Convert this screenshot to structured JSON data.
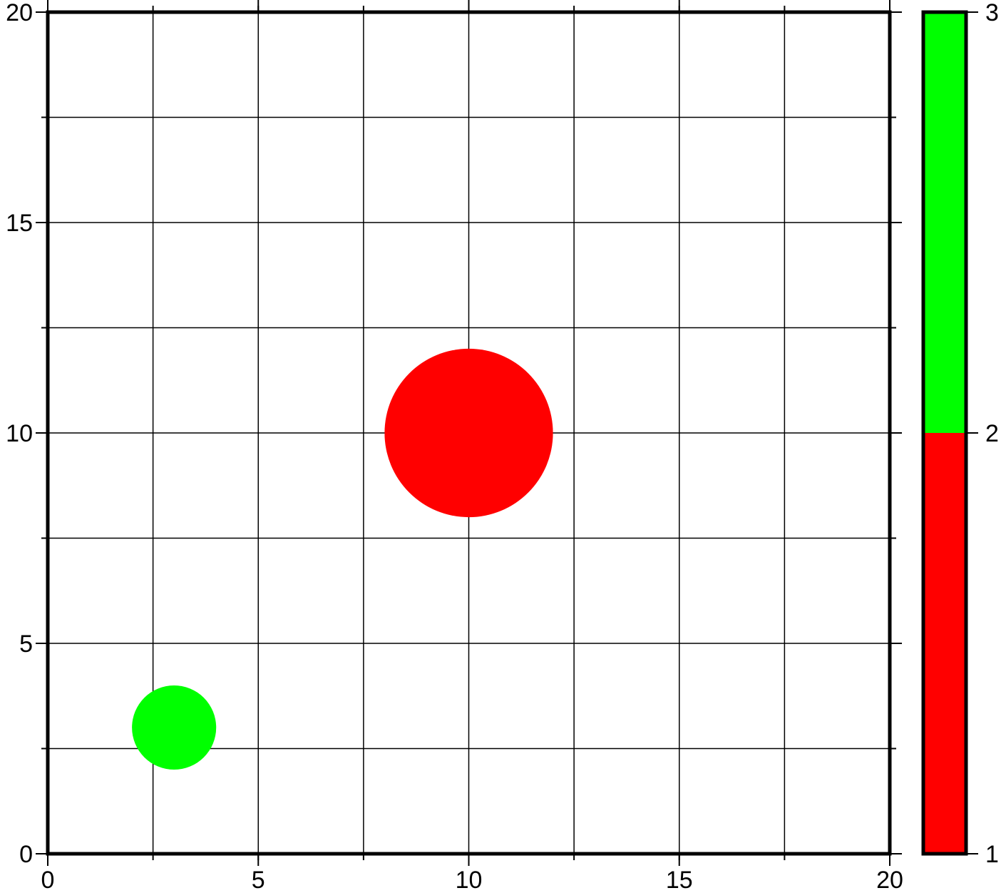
{
  "chart_data": {
    "type": "scatter",
    "title": "",
    "xlabel": "",
    "ylabel": "",
    "xlim": [
      0,
      20
    ],
    "ylim": [
      0,
      20
    ],
    "x_ticks": [
      0,
      5,
      10,
      15,
      20
    ],
    "y_ticks": [
      0,
      5,
      10,
      15,
      20
    ],
    "x_tick_labels": [
      "0",
      "5",
      "10",
      "15",
      "20"
    ],
    "y_tick_labels": [
      "0",
      "5",
      "10",
      "15",
      "20"
    ],
    "grid": true,
    "grid_interval": 2.5,
    "points": [
      {
        "x": 3,
        "y": 3,
        "z": 2.5,
        "size": 2,
        "color": "#00ff00"
      },
      {
        "x": 10,
        "y": 10,
        "z": 1.5,
        "size": 4,
        "color": "#ff0000"
      }
    ],
    "colorbar": {
      "position": "right",
      "range": [
        1,
        3
      ],
      "tick_labels": [
        "1",
        "2",
        "3"
      ],
      "segments": [
        {
          "from": 1,
          "to": 2,
          "color": "#ff0000"
        },
        {
          "from": 2,
          "to": 3,
          "color": "#00ff00"
        }
      ]
    }
  }
}
